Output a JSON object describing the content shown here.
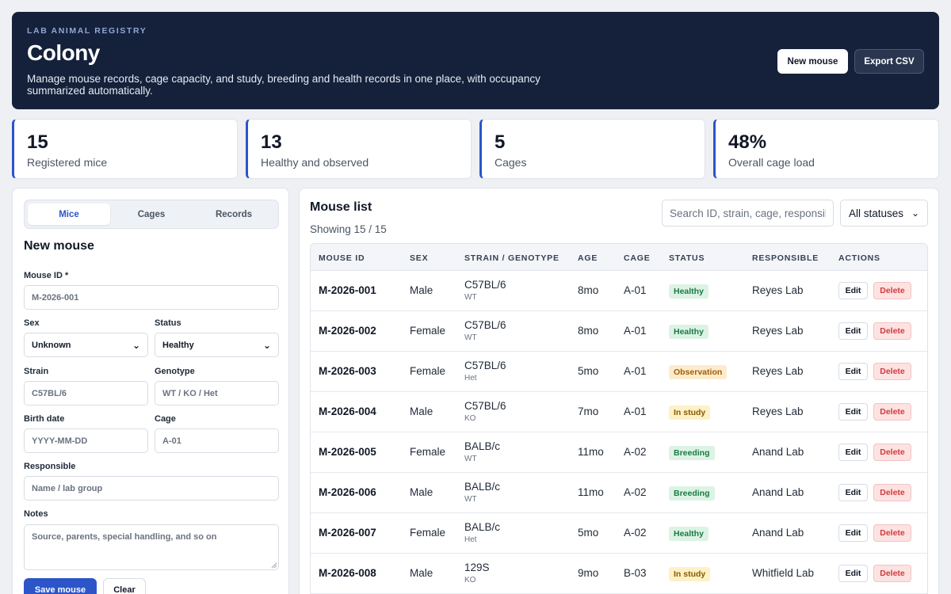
{
  "header": {
    "eyebrow": "LAB ANIMAL REGISTRY",
    "title": "Colony",
    "description": "Manage mouse records, cage capacity, and study, breeding and health records in one place, with occupancy summarized automatically.",
    "new_mouse_label": "New mouse",
    "export_label": "Export CSV"
  },
  "stats": [
    {
      "value": "15",
      "label": "Registered mice"
    },
    {
      "value": "13",
      "label": "Healthy and observed"
    },
    {
      "value": "5",
      "label": "Cages"
    },
    {
      "value": "48%",
      "label": "Overall cage load"
    }
  ],
  "tabs": [
    "Mice",
    "Cages",
    "Records"
  ],
  "active_tab": "Mice",
  "form": {
    "title": "New mouse",
    "mouse_id": {
      "label": "Mouse ID *",
      "placeholder": "M-2026-001"
    },
    "sex": {
      "label": "Sex",
      "value": "Unknown"
    },
    "status": {
      "label": "Status",
      "value": "Healthy"
    },
    "strain": {
      "label": "Strain",
      "placeholder": "C57BL/6"
    },
    "genotype": {
      "label": "Genotype",
      "placeholder": "WT / KO / Het"
    },
    "birth_date": {
      "label": "Birth date",
      "placeholder": "YYYY-MM-DD"
    },
    "cage": {
      "label": "Cage",
      "placeholder": "A-01"
    },
    "responsible": {
      "label": "Responsible",
      "placeholder": "Name / lab group"
    },
    "notes": {
      "label": "Notes",
      "placeholder": "Source, parents, special handling, and so on"
    },
    "save_label": "Save mouse",
    "clear_label": "Clear"
  },
  "list": {
    "title": "Mouse list",
    "count": "Showing 15 / 15",
    "search_placeholder": "Search ID, strain, cage, responsible",
    "status_filter": "All statuses",
    "columns": [
      "MOUSE ID",
      "SEX",
      "STRAIN / GENOTYPE",
      "AGE",
      "CAGE",
      "STATUS",
      "RESPONSIBLE",
      "ACTIONS"
    ],
    "edit_label": "Edit",
    "delete_label": "Delete",
    "rows": [
      {
        "id": "M-2026-001",
        "sex": "Male",
        "strain": "C57BL/6",
        "genotype": "WT",
        "age": "8mo",
        "cage": "A-01",
        "status": "Healthy",
        "responsible": "Reyes Lab"
      },
      {
        "id": "M-2026-002",
        "sex": "Female",
        "strain": "C57BL/6",
        "genotype": "WT",
        "age": "8mo",
        "cage": "A-01",
        "status": "Healthy",
        "responsible": "Reyes Lab"
      },
      {
        "id": "M-2026-003",
        "sex": "Female",
        "strain": "C57BL/6",
        "genotype": "Het",
        "age": "5mo",
        "cage": "A-01",
        "status": "Observation",
        "responsible": "Reyes Lab"
      },
      {
        "id": "M-2026-004",
        "sex": "Male",
        "strain": "C57BL/6",
        "genotype": "KO",
        "age": "7mo",
        "cage": "A-01",
        "status": "In study",
        "responsible": "Reyes Lab"
      },
      {
        "id": "M-2026-005",
        "sex": "Female",
        "strain": "BALB/c",
        "genotype": "WT",
        "age": "11mo",
        "cage": "A-02",
        "status": "Breeding",
        "responsible": "Anand Lab"
      },
      {
        "id": "M-2026-006",
        "sex": "Male",
        "strain": "BALB/c",
        "genotype": "WT",
        "age": "11mo",
        "cage": "A-02",
        "status": "Breeding",
        "responsible": "Anand Lab"
      },
      {
        "id": "M-2026-007",
        "sex": "Female",
        "strain": "BALB/c",
        "genotype": "Het",
        "age": "5mo",
        "cage": "A-02",
        "status": "Healthy",
        "responsible": "Anand Lab"
      },
      {
        "id": "M-2026-008",
        "sex": "Male",
        "strain": "129S",
        "genotype": "KO",
        "age": "9mo",
        "cage": "B-03",
        "status": "In study",
        "responsible": "Whitfield Lab"
      }
    ]
  }
}
